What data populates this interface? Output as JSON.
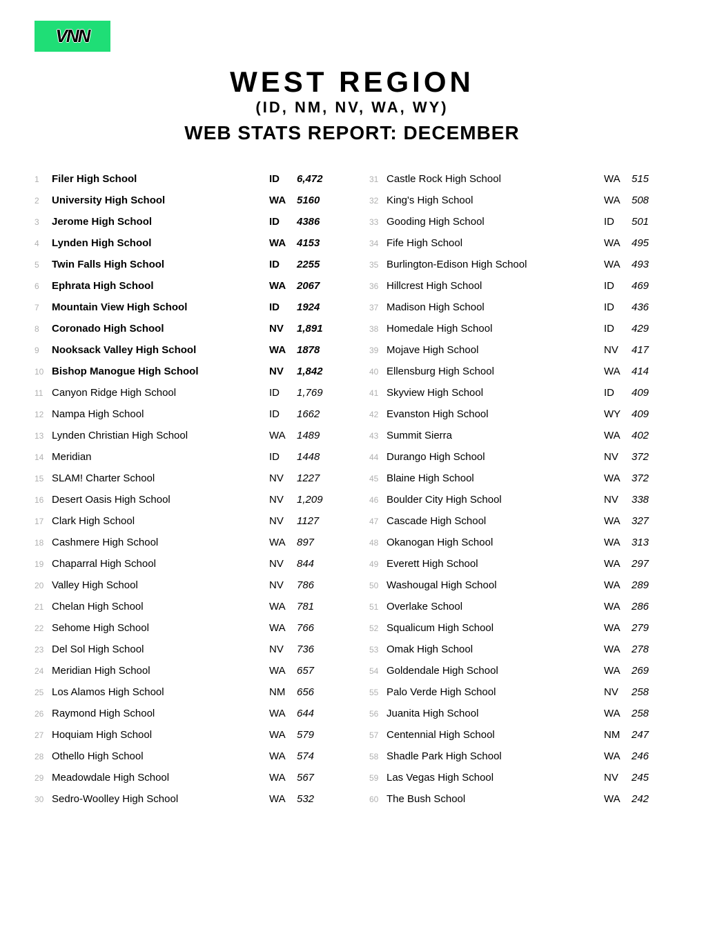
{
  "logo": "VNN",
  "header": {
    "title": "WEST REGION",
    "subtitle": "(ID, NM, NV, WA, WY)",
    "report": "WEB STATS REPORT: DECEMBER"
  },
  "colors": {
    "logo_bg": "#1fde76",
    "rank_text": "#b0b0b0",
    "body_text": "#000000",
    "background": "#ffffff"
  },
  "schools": [
    {
      "rank": 1,
      "name": "Filer High School",
      "state": "ID",
      "count": "6,472",
      "bold": true
    },
    {
      "rank": 2,
      "name": "University High School",
      "state": "WA",
      "count": "5160",
      "bold": true
    },
    {
      "rank": 3,
      "name": "Jerome High School",
      "state": "ID",
      "count": "4386",
      "bold": true
    },
    {
      "rank": 4,
      "name": "Lynden High School",
      "state": "WA",
      "count": "4153",
      "bold": true
    },
    {
      "rank": 5,
      "name": "Twin Falls High School",
      "state": "ID",
      "count": "2255",
      "bold": true
    },
    {
      "rank": 6,
      "name": "Ephrata High School",
      "state": "WA",
      "count": "2067",
      "bold": true
    },
    {
      "rank": 7,
      "name": "Mountain View High School",
      "state": "ID",
      "count": "1924",
      "bold": true
    },
    {
      "rank": 8,
      "name": "Coronado High School",
      "state": "NV",
      "count": "1,891",
      "bold": true
    },
    {
      "rank": 9,
      "name": "Nooksack Valley High School",
      "state": "WA",
      "count": "1878",
      "bold": true
    },
    {
      "rank": 10,
      "name": "Bishop Manogue High School",
      "state": "NV",
      "count": "1,842",
      "bold": true
    },
    {
      "rank": 11,
      "name": "Canyon Ridge High School",
      "state": "ID",
      "count": "1,769",
      "bold": false
    },
    {
      "rank": 12,
      "name": "Nampa High School",
      "state": "ID",
      "count": "1662",
      "bold": false
    },
    {
      "rank": 13,
      "name": "Lynden Christian High School",
      "state": "WA",
      "count": "1489",
      "bold": false
    },
    {
      "rank": 14,
      "name": "Meridian",
      "state": "ID",
      "count": "1448",
      "bold": false
    },
    {
      "rank": 15,
      "name": "SLAM! Charter School",
      "state": "NV",
      "count": "1227",
      "bold": false
    },
    {
      "rank": 16,
      "name": "Desert Oasis High School",
      "state": "NV",
      "count": "1,209",
      "bold": false
    },
    {
      "rank": 17,
      "name": "Clark High School",
      "state": "NV",
      "count": "1127",
      "bold": false
    },
    {
      "rank": 18,
      "name": "Cashmere High School",
      "state": "WA",
      "count": "897",
      "bold": false
    },
    {
      "rank": 19,
      "name": "Chaparral High School",
      "state": "NV",
      "count": "844",
      "bold": false
    },
    {
      "rank": 20,
      "name": "Valley High School",
      "state": "NV",
      "count": "786",
      "bold": false
    },
    {
      "rank": 21,
      "name": "Chelan High School",
      "state": "WA",
      "count": "781",
      "bold": false
    },
    {
      "rank": 22,
      "name": "Sehome High School",
      "state": "WA",
      "count": "766",
      "bold": false
    },
    {
      "rank": 23,
      "name": "Del Sol High School",
      "state": "NV",
      "count": "736",
      "bold": false
    },
    {
      "rank": 24,
      "name": "Meridian High School",
      "state": "WA",
      "count": "657",
      "bold": false
    },
    {
      "rank": 25,
      "name": "Los Alamos High School",
      "state": "NM",
      "count": "656",
      "bold": false
    },
    {
      "rank": 26,
      "name": "Raymond High School",
      "state": "WA",
      "count": "644",
      "bold": false
    },
    {
      "rank": 27,
      "name": "Hoquiam High School",
      "state": "WA",
      "count": "579",
      "bold": false
    },
    {
      "rank": 28,
      "name": "Othello High School",
      "state": "WA",
      "count": "574",
      "bold": false
    },
    {
      "rank": 29,
      "name": "Meadowdale High School",
      "state": "WA",
      "count": "567",
      "bold": false
    },
    {
      "rank": 30,
      "name": "Sedro-Woolley High School",
      "state": "WA",
      "count": "532",
      "bold": false
    },
    {
      "rank": 31,
      "name": "Castle Rock High School",
      "state": "WA",
      "count": "515",
      "bold": false
    },
    {
      "rank": 32,
      "name": "King's High School",
      "state": "WA",
      "count": "508",
      "bold": false
    },
    {
      "rank": 33,
      "name": "Gooding High School",
      "state": "ID",
      "count": "501",
      "bold": false
    },
    {
      "rank": 34,
      "name": "Fife High School",
      "state": "WA",
      "count": "495",
      "bold": false
    },
    {
      "rank": 35,
      "name": "Burlington-Edison High School",
      "state": "WA",
      "count": "493",
      "bold": false
    },
    {
      "rank": 36,
      "name": "Hillcrest High School",
      "state": "ID",
      "count": "469",
      "bold": false
    },
    {
      "rank": 37,
      "name": "Madison High School",
      "state": "ID",
      "count": "436",
      "bold": false
    },
    {
      "rank": 38,
      "name": "Homedale High School",
      "state": "ID",
      "count": "429",
      "bold": false
    },
    {
      "rank": 39,
      "name": "Mojave High School",
      "state": "NV",
      "count": "417",
      "bold": false
    },
    {
      "rank": 40,
      "name": "Ellensburg High School",
      "state": "WA",
      "count": "414",
      "bold": false
    },
    {
      "rank": 41,
      "name": "Skyview High School",
      "state": "ID",
      "count": "409",
      "bold": false
    },
    {
      "rank": 42,
      "name": "Evanston High School",
      "state": "WY",
      "count": "409",
      "bold": false
    },
    {
      "rank": 43,
      "name": "Summit Sierra",
      "state": "WA",
      "count": "402",
      "bold": false
    },
    {
      "rank": 44,
      "name": "Durango High School",
      "state": "NV",
      "count": "372",
      "bold": false
    },
    {
      "rank": 45,
      "name": "Blaine High School",
      "state": "WA",
      "count": "372",
      "bold": false
    },
    {
      "rank": 46,
      "name": "Boulder City High School",
      "state": "NV",
      "count": "338",
      "bold": false
    },
    {
      "rank": 47,
      "name": "Cascade High School",
      "state": "WA",
      "count": "327",
      "bold": false
    },
    {
      "rank": 48,
      "name": "Okanogan High School",
      "state": "WA",
      "count": "313",
      "bold": false
    },
    {
      "rank": 49,
      "name": "Everett High School",
      "state": "WA",
      "count": "297",
      "bold": false
    },
    {
      "rank": 50,
      "name": "Washougal High School",
      "state": "WA",
      "count": "289",
      "bold": false
    },
    {
      "rank": 51,
      "name": "Overlake School",
      "state": "WA",
      "count": "286",
      "bold": false
    },
    {
      "rank": 52,
      "name": "Squalicum High School",
      "state": "WA",
      "count": "279",
      "bold": false
    },
    {
      "rank": 53,
      "name": "Omak High School",
      "state": "WA",
      "count": "278",
      "bold": false
    },
    {
      "rank": 54,
      "name": "Goldendale High School",
      "state": "WA",
      "count": "269",
      "bold": false
    },
    {
      "rank": 55,
      "name": "Palo Verde High School",
      "state": "NV",
      "count": "258",
      "bold": false
    },
    {
      "rank": 56,
      "name": "Juanita High School",
      "state": "WA",
      "count": "258",
      "bold": false
    },
    {
      "rank": 57,
      "name": "Centennial High School",
      "state": "NM",
      "count": "247",
      "bold": false
    },
    {
      "rank": 58,
      "name": "Shadle Park High School",
      "state": "WA",
      "count": "246",
      "bold": false
    },
    {
      "rank": 59,
      "name": "Las Vegas High School",
      "state": "NV",
      "count": "245",
      "bold": false
    },
    {
      "rank": 60,
      "name": "The Bush School",
      "state": "WA",
      "count": "242",
      "bold": false
    }
  ]
}
